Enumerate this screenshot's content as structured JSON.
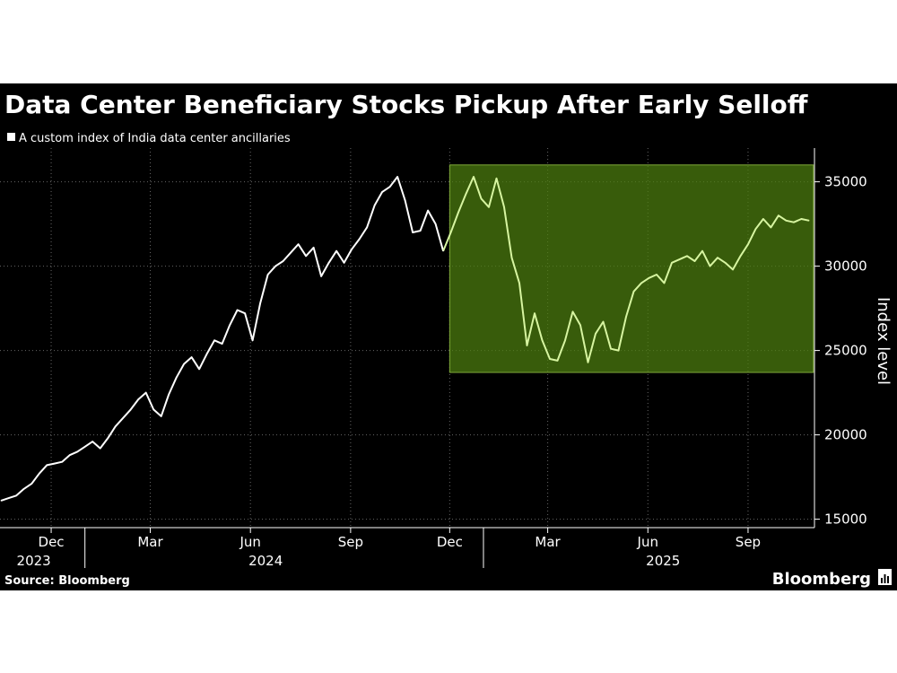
{
  "chart_data": {
    "type": "line",
    "title": "Data Center Beneficiary Stocks Pickup After Early Selloff",
    "legend": [
      "A custom index of India data center ancillaries"
    ],
    "ylabel": "Index level",
    "source": "Source: Bloomberg",
    "brand": "Bloomberg",
    "ylim": [
      14500,
      37000
    ],
    "yticks": [
      15000,
      20000,
      25000,
      30000,
      35000
    ],
    "xlim": [
      "2023-10-15",
      "2025-11-01"
    ],
    "xticks": [
      {
        "label": "Dec",
        "date": "2023-12-01"
      },
      {
        "label": "Mar",
        "date": "2024-03-01"
      },
      {
        "label": "Jun",
        "date": "2024-06-01"
      },
      {
        "label": "Sep",
        "date": "2024-09-01"
      },
      {
        "label": "Dec",
        "date": "2024-12-01"
      },
      {
        "label": "Mar",
        "date": "2025-03-01"
      },
      {
        "label": "Jun",
        "date": "2025-06-01"
      },
      {
        "label": "Sep",
        "date": "2025-09-01"
      }
    ],
    "years": [
      {
        "label": "2023",
        "date": "2023-11-15"
      },
      {
        "label": "2024",
        "date": "2024-06-15"
      },
      {
        "label": "2025",
        "date": "2025-06-15"
      }
    ],
    "year_dividers": [
      "2024-01-01",
      "2025-01-01"
    ],
    "highlight": {
      "x0": "2024-12-01",
      "x1": "2025-10-31",
      "y0": 23700,
      "y1": 36000,
      "color": "#4e7f0f"
    },
    "colors": {
      "background": "#000000",
      "line": "#ffffff",
      "highlight_line": "#d7f5a1",
      "grid": "#666666",
      "text": "#ffffff"
    },
    "series": [
      {
        "name": "A custom index of India data center ancillaries",
        "points": [
          [
            "2023-10-16",
            16100
          ],
          [
            "2023-10-23",
            16250
          ],
          [
            "2023-10-30",
            16400
          ],
          [
            "2023-11-06",
            16800
          ],
          [
            "2023-11-13",
            17100
          ],
          [
            "2023-11-20",
            17700
          ],
          [
            "2023-11-27",
            18200
          ],
          [
            "2023-12-04",
            18300
          ],
          [
            "2023-12-11",
            18400
          ],
          [
            "2023-12-18",
            18800
          ],
          [
            "2023-12-25",
            19000
          ],
          [
            "2024-01-01",
            19300
          ],
          [
            "2024-01-08",
            19600
          ],
          [
            "2024-01-15",
            19200
          ],
          [
            "2024-01-22",
            19800
          ],
          [
            "2024-01-29",
            20500
          ],
          [
            "2024-02-05",
            21000
          ],
          [
            "2024-02-12",
            21500
          ],
          [
            "2024-02-19",
            22100
          ],
          [
            "2024-02-26",
            22500
          ],
          [
            "2024-03-04",
            21500
          ],
          [
            "2024-03-11",
            21100
          ],
          [
            "2024-03-18",
            22400
          ],
          [
            "2024-03-25",
            23400
          ],
          [
            "2024-04-01",
            24200
          ],
          [
            "2024-04-08",
            24600
          ],
          [
            "2024-04-15",
            23900
          ],
          [
            "2024-04-22",
            24800
          ],
          [
            "2024-04-29",
            25600
          ],
          [
            "2024-05-06",
            25400
          ],
          [
            "2024-05-13",
            26500
          ],
          [
            "2024-05-20",
            27400
          ],
          [
            "2024-05-27",
            27200
          ],
          [
            "2024-06-03",
            25600
          ],
          [
            "2024-06-10",
            27800
          ],
          [
            "2024-06-17",
            29500
          ],
          [
            "2024-06-24",
            30000
          ],
          [
            "2024-07-01",
            30300
          ],
          [
            "2024-07-08",
            30800
          ],
          [
            "2024-07-15",
            31300
          ],
          [
            "2024-07-22",
            30600
          ],
          [
            "2024-07-29",
            31100
          ],
          [
            "2024-08-05",
            29400
          ],
          [
            "2024-08-12",
            30200
          ],
          [
            "2024-08-19",
            30900
          ],
          [
            "2024-08-26",
            30200
          ],
          [
            "2024-09-02",
            31000
          ],
          [
            "2024-09-09",
            31600
          ],
          [
            "2024-09-16",
            32300
          ],
          [
            "2024-09-23",
            33600
          ],
          [
            "2024-09-30",
            34400
          ],
          [
            "2024-10-07",
            34700
          ],
          [
            "2024-10-14",
            35300
          ],
          [
            "2024-10-21",
            33900
          ],
          [
            "2024-10-28",
            32000
          ],
          [
            "2024-11-04",
            32100
          ],
          [
            "2024-11-11",
            33300
          ],
          [
            "2024-11-18",
            32500
          ],
          [
            "2024-11-25",
            30900
          ],
          [
            "2024-12-02",
            32000
          ],
          [
            "2024-12-09",
            33200
          ],
          [
            "2024-12-16",
            34300
          ],
          [
            "2024-12-23",
            35300
          ],
          [
            "2024-12-30",
            34000
          ],
          [
            "2025-01-06",
            33500
          ],
          [
            "2025-01-13",
            35200
          ],
          [
            "2025-01-20",
            33500
          ],
          [
            "2025-01-27",
            30500
          ],
          [
            "2025-02-03",
            29000
          ],
          [
            "2025-02-10",
            25300
          ],
          [
            "2025-02-17",
            27200
          ],
          [
            "2025-02-24",
            25600
          ],
          [
            "2025-03-03",
            24500
          ],
          [
            "2025-03-10",
            24400
          ],
          [
            "2025-03-17",
            25600
          ],
          [
            "2025-03-24",
            27300
          ],
          [
            "2025-03-31",
            26500
          ],
          [
            "2025-04-07",
            24300
          ],
          [
            "2025-04-14",
            26000
          ],
          [
            "2025-04-21",
            26700
          ],
          [
            "2025-04-28",
            25100
          ],
          [
            "2025-05-05",
            25000
          ],
          [
            "2025-05-12",
            27000
          ],
          [
            "2025-05-19",
            28500
          ],
          [
            "2025-05-26",
            29000
          ],
          [
            "2025-06-02",
            29300
          ],
          [
            "2025-06-09",
            29500
          ],
          [
            "2025-06-16",
            29000
          ],
          [
            "2025-06-23",
            30200
          ],
          [
            "2025-06-30",
            30400
          ],
          [
            "2025-07-07",
            30600
          ],
          [
            "2025-07-14",
            30300
          ],
          [
            "2025-07-21",
            30900
          ],
          [
            "2025-07-28",
            30000
          ],
          [
            "2025-08-04",
            30500
          ],
          [
            "2025-08-11",
            30200
          ],
          [
            "2025-08-18",
            29800
          ],
          [
            "2025-08-25",
            30600
          ],
          [
            "2025-09-01",
            31300
          ],
          [
            "2025-09-08",
            32200
          ],
          [
            "2025-09-15",
            32800
          ],
          [
            "2025-09-22",
            32300
          ],
          [
            "2025-09-29",
            33000
          ],
          [
            "2025-10-06",
            32700
          ],
          [
            "2025-10-13",
            32600
          ],
          [
            "2025-10-20",
            32800
          ],
          [
            "2025-10-27",
            32700
          ]
        ]
      }
    ]
  }
}
